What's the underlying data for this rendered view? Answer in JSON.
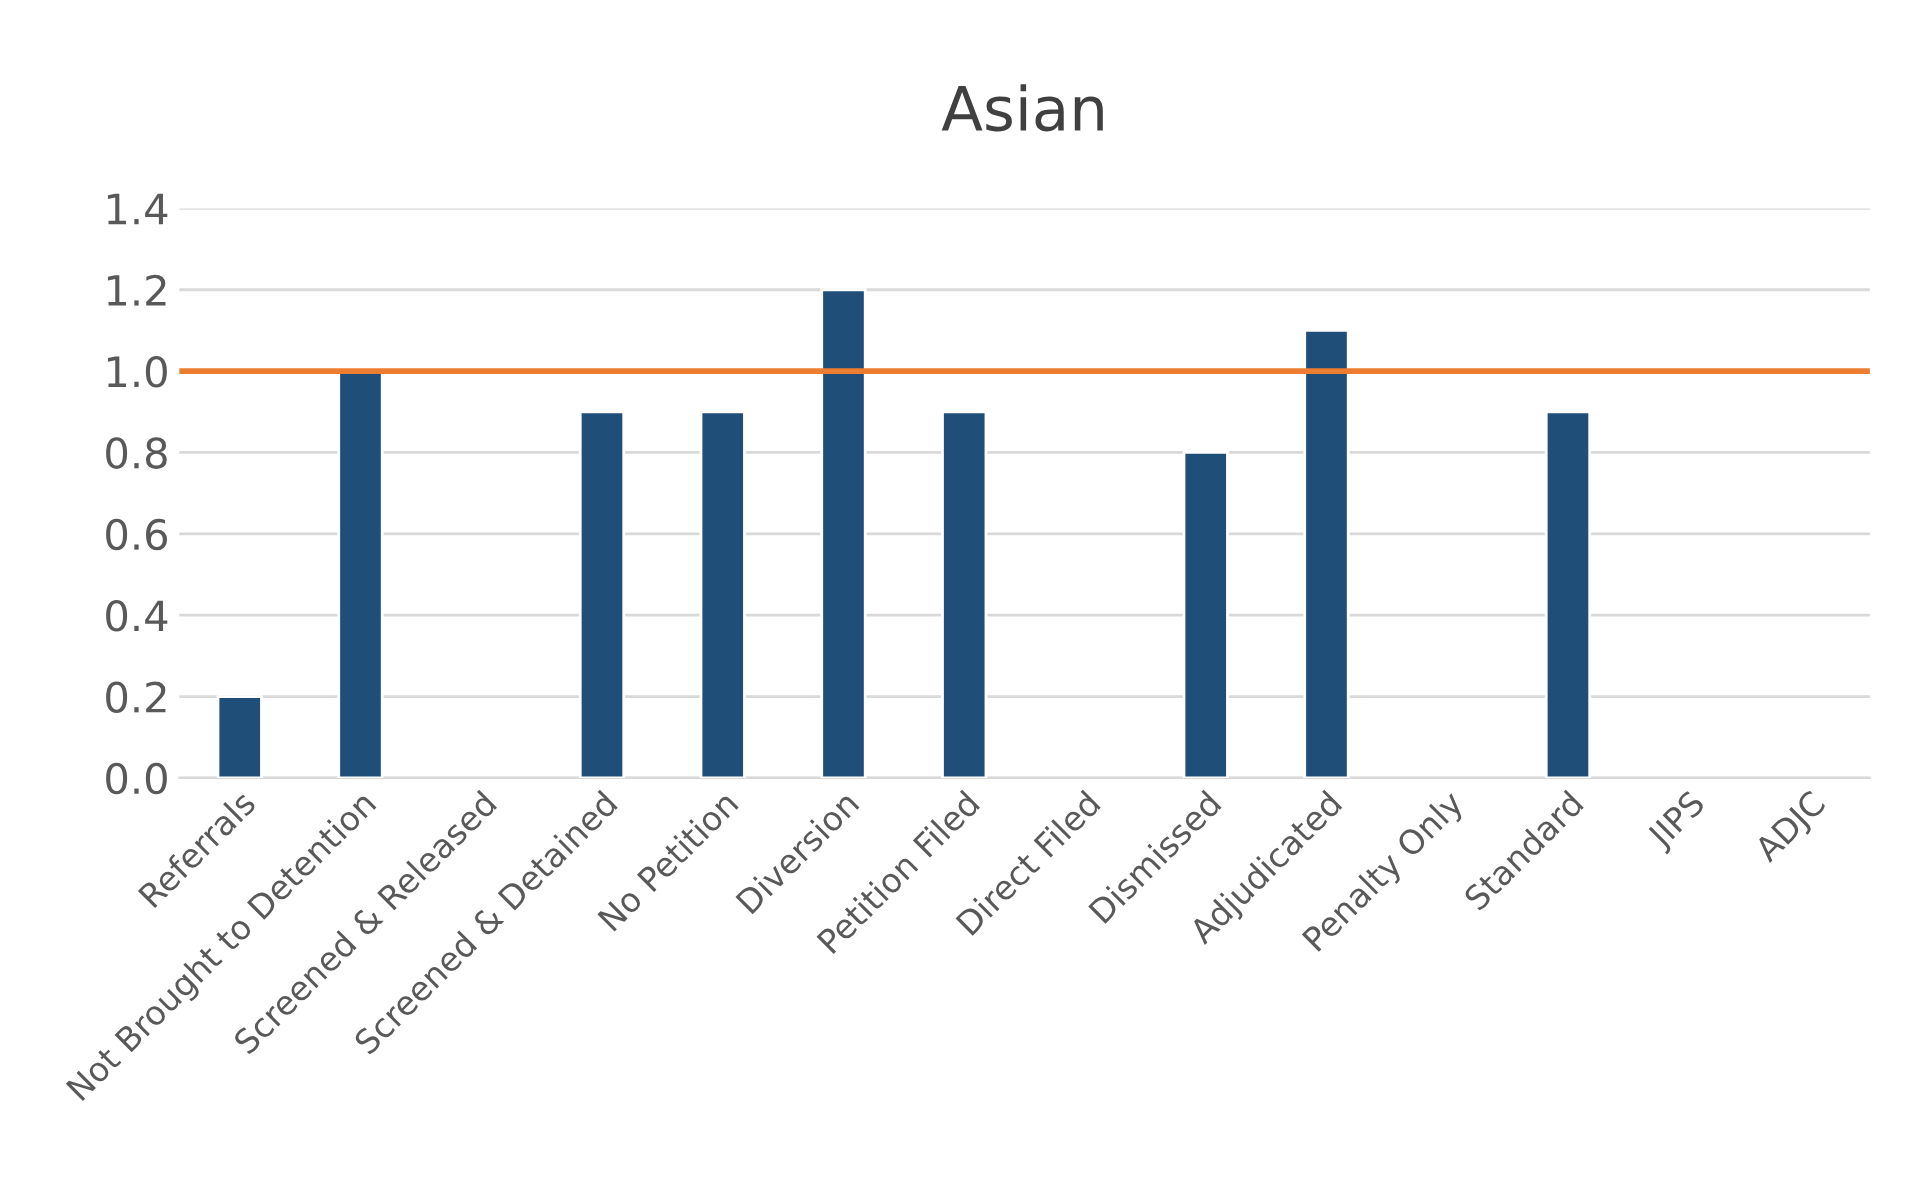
{
  "chart_data": {
    "type": "bar",
    "title": "Asian",
    "categories": [
      "Referrals",
      "Not Brought to Detention",
      "Screened & Released",
      "Screened & Detained",
      "No Petition",
      "Diversion",
      "Petition Filed",
      "Direct Filed",
      "Dismissed",
      "Adjudicated",
      "Penalty Only",
      "Standard",
      "JIPS",
      "ADJC"
    ],
    "values": [
      0.2,
      1.0,
      null,
      0.9,
      0.9,
      1.2,
      0.9,
      null,
      0.8,
      1.1,
      null,
      0.9,
      null,
      null
    ],
    "color": "#1f4e79",
    "ylim": [
      0,
      1.4
    ],
    "yticks": [
      {
        "value": 0,
        "label": "0.0"
      },
      {
        "value": 0.2,
        "label": "0.2"
      },
      {
        "value": 0.4,
        "label": "0.4"
      },
      {
        "value": 0.6,
        "label": "0.6"
      },
      {
        "value": 0.8,
        "label": "0.8"
      },
      {
        "value": 1.0,
        "label": "1.0"
      },
      {
        "value": 1.2,
        "label": "1.2"
      },
      {
        "value": 1.4,
        "label": "1.4"
      }
    ],
    "grid": "y",
    "ref_lines": [
      {
        "axis": "y",
        "value": 1.0,
        "color": "#ed7d31"
      }
    ]
  }
}
